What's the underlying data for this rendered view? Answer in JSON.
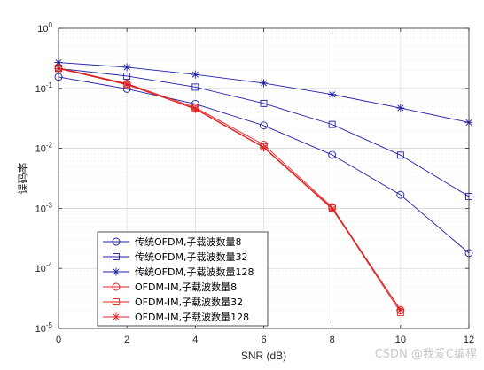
{
  "chart_data": {
    "type": "line",
    "xlabel": "SNR (dB)",
    "ylabel": "误码率",
    "xlim": [
      0,
      12
    ],
    "ylim": [
      1e-05,
      1
    ],
    "yscale": "log",
    "grid": true,
    "legend_position": "bottom-left",
    "x_ticks": [
      "0",
      "2",
      "4",
      "6",
      "8",
      "10",
      "12"
    ],
    "y_ticks": [
      {
        "base": "10",
        "exp": "0"
      },
      {
        "base": "10",
        "exp": "-1"
      },
      {
        "base": "10",
        "exp": "-2"
      },
      {
        "base": "10",
        "exp": "-3"
      },
      {
        "base": "10",
        "exp": "-4"
      },
      {
        "base": "10",
        "exp": "-5"
      }
    ],
    "series": [
      {
        "name": "传统OFDM,子载波数量8",
        "color": "#1f1fa8",
        "marker": "circle",
        "x": [
          0,
          2,
          4,
          6,
          8,
          10,
          12
        ],
        "y": [
          0.155,
          0.098,
          0.055,
          0.024,
          0.0078,
          0.00168,
          0.00018
        ]
      },
      {
        "name": "传统OFDM,子载波数量32",
        "color": "#1f1fa8",
        "marker": "square",
        "x": [
          0,
          2,
          4,
          6,
          8,
          10,
          12
        ],
        "y": [
          0.215,
          0.16,
          0.105,
          0.056,
          0.025,
          0.0077,
          0.00158
        ]
      },
      {
        "name": "传统OFDM,子载波数量128",
        "color": "#1f1fa8",
        "marker": "asterisk",
        "x": [
          0,
          2,
          4,
          6,
          8,
          10,
          12
        ],
        "y": [
          0.27,
          0.225,
          0.17,
          0.122,
          0.079,
          0.047,
          0.027
        ]
      },
      {
        "name": "OFDM-IM,子载波数量8",
        "color": "#e02020",
        "marker": "circle",
        "x": [
          0,
          2,
          4,
          6,
          8,
          10
        ],
        "y": [
          0.22,
          0.12,
          0.048,
          0.0115,
          0.00105,
          2e-05
        ]
      },
      {
        "name": "OFDM-IM,子载波数量32",
        "color": "#e02020",
        "marker": "square",
        "x": [
          0,
          2,
          4,
          6,
          8,
          10
        ],
        "y": [
          0.215,
          0.115,
          0.046,
          0.0105,
          0.00101,
          1.85e-05
        ]
      },
      {
        "name": "OFDM-IM,子载波数量128",
        "color": "#e02020",
        "marker": "asterisk",
        "x": [
          0,
          2,
          4,
          6,
          8,
          10
        ],
        "y": [
          0.213,
          0.118,
          0.045,
          0.0103,
          0.00098,
          2.05e-05
        ]
      }
    ]
  },
  "watermark": "CSDN @我爱C编程"
}
